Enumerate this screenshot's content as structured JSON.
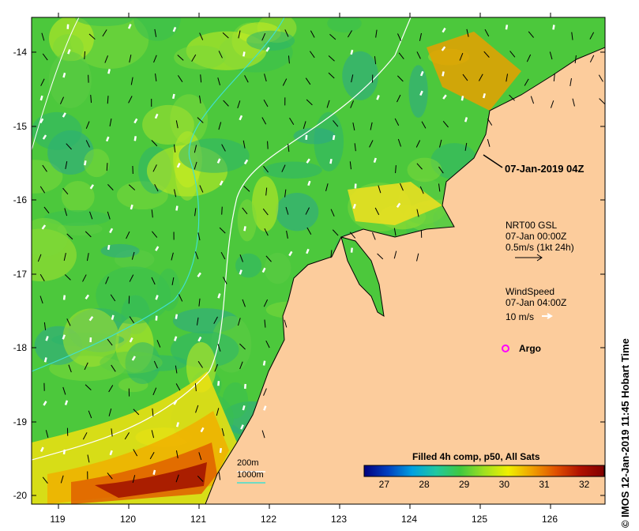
{
  "map": {
    "y_axis_labels": [
      "-14",
      "-15",
      "-16",
      "-17",
      "-18",
      "-19",
      "-20"
    ],
    "x_axis_labels": [
      "119",
      "120",
      "121",
      "122",
      "123",
      "124",
      "125",
      "126"
    ],
    "lat_range": [
      -20.1,
      -13.5
    ],
    "lon_range": [
      118.6,
      126.7
    ],
    "land_color": "#fccc9c",
    "ocean_base_color": "#4cc83c"
  },
  "annotations": {
    "snapshot_time": "07-Jan-2019 04Z",
    "current_source": "NRT00 GSL",
    "current_time": "07-Jan 00:00Z",
    "current_scale": "0.5m/s (1kt 24h)",
    "wind_title": "WindSpeed",
    "wind_time": "07-Jan 04:00Z",
    "wind_scale": "10 m/s",
    "argo_label": "Argo",
    "argo_marker_color": "#ff00ff",
    "contour_200m": "200m",
    "contour_1000m": "1000m",
    "contour_200m_color": "#ffffff",
    "contour_1000m_color": "#40e0d0"
  },
  "colorbar": {
    "title": "Filled 4h comp, p50, All Sats",
    "ticks": [
      "27",
      "28",
      "29",
      "30",
      "31",
      "32"
    ],
    "range": [
      26.5,
      32.5
    ],
    "colors": [
      "#00007f",
      "#0040c0",
      "#00a0e0",
      "#20c8a0",
      "#40c840",
      "#a0e020",
      "#f0f000",
      "#f0a000",
      "#e05000",
      "#b01000",
      "#800000"
    ]
  },
  "credit": "© IMOS 12-Jan-2019 11:45 Hobart Time"
}
